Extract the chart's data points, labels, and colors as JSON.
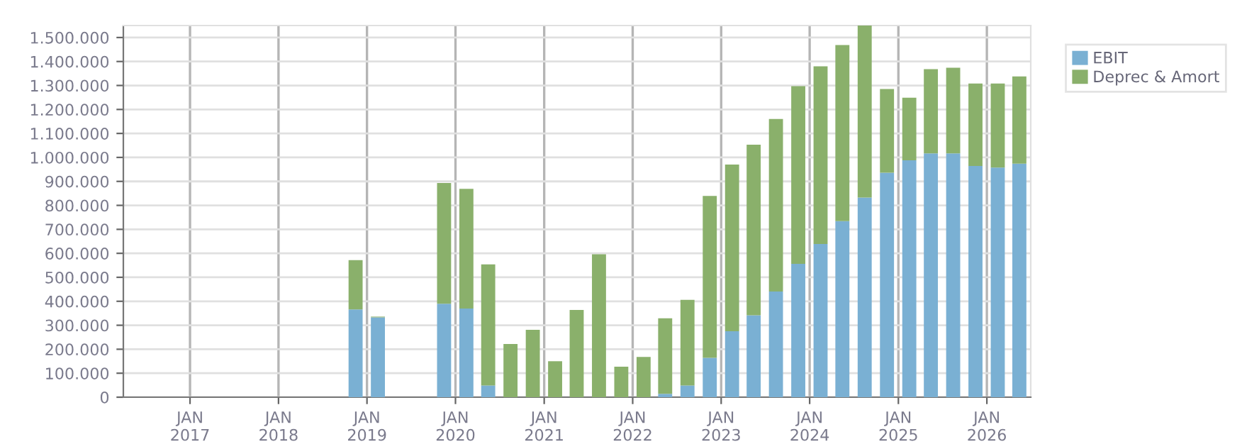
{
  "chart_data": {
    "type": "bar",
    "stacked": true,
    "x": [
      "2018-11-15",
      "2019-02-15",
      "2019-05-15",
      "2019-08-15",
      "2019-11-15",
      "2020-02-15",
      "2020-05-15",
      "2020-08-15",
      "2020-11-15",
      "2021-02-15",
      "2021-05-15",
      "2021-08-15",
      "2021-11-15",
      "2022-02-15",
      "2022-05-15",
      "2022-08-15",
      "2022-11-15",
      "2023-02-15",
      "2023-05-15",
      "2023-08-15",
      "2023-11-15",
      "2024-02-15",
      "2024-05-15",
      "2024-08-15",
      "2024-11-15",
      "2025-02-15",
      "2025-05-15",
      "2025-08-15",
      "2025-11-15",
      "2026-02-15",
      "2026-05-15"
    ],
    "series": [
      {
        "name": "EBIT",
        "color": "#7ab0d3",
        "values": [
          366000,
          333000,
          null,
          null,
          390000,
          370000,
          49000,
          0,
          0,
          0,
          0,
          0,
          0,
          0,
          14000,
          49000,
          164000,
          275000,
          342000,
          441000,
          556000,
          639000,
          734000,
          833000,
          936000,
          988000,
          1017000,
          1017000,
          964000,
          958000,
          974000
        ]
      },
      {
        "name": "Deprec & Amort",
        "color": "#8ab06b",
        "values": [
          206000,
          3000,
          null,
          null,
          503000,
          499000,
          505000,
          222000,
          281000,
          150000,
          364000,
          596000,
          127000,
          168000,
          315000,
          357000,
          675000,
          695000,
          711000,
          719000,
          741000,
          741000,
          735000,
          717000,
          349000,
          261000,
          351000,
          357000,
          344000,
          350000,
          364000
        ]
      }
    ],
    "xlim": [
      "2016-04-01",
      "2026-07-01"
    ],
    "xticks": [
      {
        "value": "2017-01-01",
        "label": "JAN\n2017"
      },
      {
        "value": "2018-01-01",
        "label": "JAN\n2018"
      },
      {
        "value": "2019-01-01",
        "label": "JAN\n2019"
      },
      {
        "value": "2020-01-01",
        "label": "JAN\n2020"
      },
      {
        "value": "2021-01-01",
        "label": "JAN\n2021"
      },
      {
        "value": "2022-01-01",
        "label": "JAN\n2022"
      },
      {
        "value": "2023-01-01",
        "label": "JAN\n2023"
      },
      {
        "value": "2024-01-01",
        "label": "JAN\n2024"
      },
      {
        "value": "2025-01-01",
        "label": "JAN\n2025"
      },
      {
        "value": "2026-01-01",
        "label": "JAN\n2026"
      }
    ],
    "ylim": [
      0,
      1550000
    ],
    "yticks": [
      0,
      {
        "value": 100000,
        "label": "100.000"
      },
      {
        "value": 200000,
        "label": "200.000"
      },
      {
        "value": 300000,
        "label": "300.000"
      },
      {
        "value": 400000,
        "label": "400.000"
      },
      {
        "value": 500000,
        "label": "500.000"
      },
      {
        "value": 600000,
        "label": "600.000"
      },
      {
        "value": 700000,
        "label": "700.000"
      },
      {
        "value": 800000,
        "label": "800.000"
      },
      {
        "value": 900000,
        "label": "900.000"
      },
      {
        "value": 1000000,
        "label": "1.000.000"
      },
      {
        "value": 1100000,
        "label": "1.100.000"
      },
      {
        "value": 1200000,
        "label": "1.200.000"
      },
      {
        "value": 1300000,
        "label": "1.300.000"
      },
      {
        "value": 1400000,
        "label": "1.400.000"
      },
      {
        "value": 1500000,
        "label": "1.500.000"
      }
    ],
    "grid": true,
    "legend": "top right"
  }
}
